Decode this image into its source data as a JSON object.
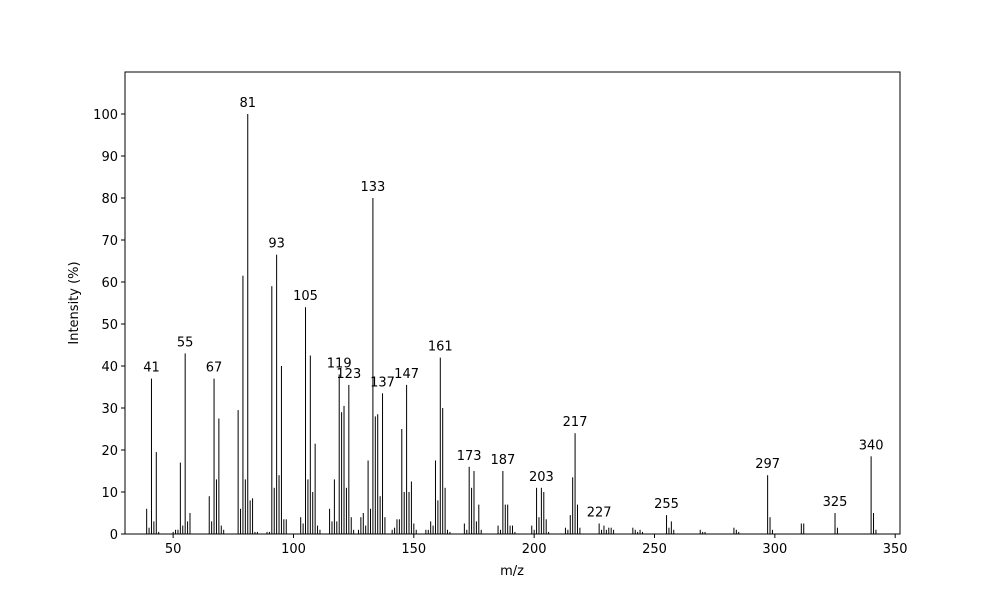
{
  "chart_data": {
    "type": "bar",
    "x_label": "m/z",
    "y_label": "Intensity (%)",
    "color": "#000000",
    "xlim": [
      30,
      352
    ],
    "ylim": [
      0,
      110
    ],
    "xticks": [
      50,
      100,
      150,
      200,
      250,
      300,
      350
    ],
    "yticks": [
      0,
      10,
      20,
      30,
      40,
      50,
      60,
      70,
      80,
      90,
      100
    ],
    "x": [
      39,
      40,
      41,
      42,
      43,
      44,
      50,
      51,
      52,
      53,
      54,
      55,
      56,
      57,
      65,
      66,
      67,
      68,
      69,
      70,
      71,
      77,
      78,
      79,
      80,
      81,
      82,
      83,
      84,
      85,
      89,
      90,
      91,
      92,
      93,
      94,
      95,
      96,
      97,
      103,
      104,
      105,
      106,
      107,
      108,
      109,
      110,
      111,
      115,
      116,
      117,
      118,
      119,
      120,
      121,
      122,
      123,
      124,
      125,
      127,
      128,
      129,
      130,
      131,
      132,
      133,
      134,
      135,
      136,
      137,
      138,
      141,
      142,
      143,
      144,
      145,
      146,
      147,
      148,
      149,
      150,
      151,
      155,
      156,
      157,
      158,
      159,
      160,
      161,
      162,
      163,
      164,
      165,
      171,
      172,
      173,
      174,
      175,
      176,
      177,
      178,
      185,
      186,
      187,
      188,
      189,
      190,
      191,
      192,
      199,
      200,
      201,
      202,
      203,
      204,
      205,
      206,
      213,
      214,
      215,
      216,
      217,
      218,
      219,
      227,
      228,
      229,
      230,
      231,
      232,
      233,
      241,
      242,
      243,
      244,
      245,
      255,
      256,
      257,
      258,
      269,
      270,
      271,
      283,
      284,
      285,
      297,
      298,
      299,
      311,
      312,
      325,
      326,
      340,
      341,
      342
    ],
    "values": [
      6,
      1.5,
      37,
      3,
      19.5,
      0.5,
      0.5,
      1,
      1,
      17,
      2,
      43,
      3,
      5,
      9,
      3,
      37,
      13,
      27.5,
      2,
      1,
      29.5,
      6,
      61.5,
      13,
      100,
      8,
      8.5,
      0.5,
      0.5,
      0.5,
      0.5,
      59,
      11,
      66.5,
      14,
      40,
      3.5,
      3.5,
      4,
      2.5,
      54,
      13,
      42.5,
      10,
      21.5,
      2,
      1,
      6,
      3,
      13,
      3,
      38,
      29,
      30.5,
      11,
      35.5,
      4,
      1,
      1,
      4,
      5,
      2,
      17.5,
      6,
      80,
      28,
      28.5,
      9,
      33.5,
      4,
      1,
      1.5,
      3.5,
      3.5,
      25,
      10,
      35.5,
      10,
      12.5,
      2.5,
      1,
      1,
      1,
      3,
      2,
      17.5,
      8,
      42,
      30,
      11,
      1,
      0.5,
      2.5,
      1,
      16,
      11,
      15,
      3,
      7,
      1,
      2,
      1,
      15,
      7,
      7,
      2,
      2,
      0.5,
      2,
      1,
      11,
      4,
      11,
      10,
      3.5,
      0.5,
      1.5,
      1,
      4.5,
      13.5,
      24,
      7,
      1.5,
      2.5,
      1,
      2,
      1,
      1.5,
      1.5,
      1,
      1.5,
      1,
      0.5,
      1,
      0.5,
      4.5,
      1.5,
      3,
      1,
      1,
      0.5,
      0.5,
      1.5,
      1,
      0.5,
      14,
      4,
      1,
      2.5,
      2.5,
      5,
      1.5,
      18.5,
      5,
      1
    ],
    "labels": [
      41,
      55,
      67,
      81,
      93,
      105,
      119,
      123,
      133,
      137,
      147,
      161,
      173,
      187,
      203,
      217,
      227,
      255,
      297,
      325,
      340
    ]
  }
}
